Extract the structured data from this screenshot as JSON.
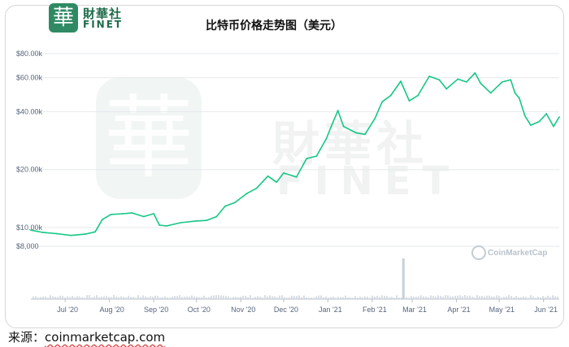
{
  "header": {
    "logo_glyph": "華",
    "logo_cn": "財華社",
    "logo_en": "FINET",
    "title": "比特币价格走势图（美元）"
  },
  "watermark": {
    "seal_glyph": "華",
    "cn": "財華社",
    "en": "FINET",
    "provider": "CoinMarketCap"
  },
  "footer": {
    "source_label": "来源：",
    "source_url": "coinmarketcap.com"
  },
  "colors": {
    "line": "#16c784",
    "grid": "#e6e9ec",
    "axis_text": "#58667e",
    "volume": "#c8d0d8"
  },
  "chart_data": {
    "type": "line",
    "title": "比特币价格走势图（美元）",
    "xlabel": "",
    "ylabel": "",
    "y_scale": "log",
    "ylim": [
      7000,
      90000
    ],
    "y_ticks": [
      {
        "value": 80000,
        "label": "$80.00k"
      },
      {
        "value": 60000,
        "label": "$60.00k"
      },
      {
        "value": 40000,
        "label": "$40.00k"
      },
      {
        "value": 20000,
        "label": "$20.00k"
      },
      {
        "value": 10000,
        "label": "$10.00k"
      },
      {
        "value": 8000,
        "label": "$8,000"
      }
    ],
    "x_ticks": [
      {
        "date": "2020-07-01",
        "label": "Jul '20"
      },
      {
        "date": "2020-08-01",
        "label": "Aug '20"
      },
      {
        "date": "2020-09-01",
        "label": "Sep '20"
      },
      {
        "date": "2020-10-01",
        "label": "Oct '20"
      },
      {
        "date": "2020-11-01",
        "label": "Nov '20"
      },
      {
        "date": "2020-12-01",
        "label": "Dec '20"
      },
      {
        "date": "2021-01-01",
        "label": "Jan '21"
      },
      {
        "date": "2021-02-01",
        "label": "Feb '21"
      },
      {
        "date": "2021-03-01",
        "label": "Mar '21"
      },
      {
        "date": "2021-04-01",
        "label": "Apr '21"
      },
      {
        "date": "2021-05-01",
        "label": "May '21"
      },
      {
        "date": "2021-06-01",
        "label": "Jun '21"
      }
    ],
    "xlim": [
      "2020-06-07",
      "2021-06-12"
    ],
    "grid": true,
    "series": [
      {
        "x": [
          "2020-06-07",
          "2020-06-15",
          "2020-06-25",
          "2020-07-05",
          "2020-07-15",
          "2020-07-22",
          "2020-07-27",
          "2020-08-02",
          "2020-08-10",
          "2020-08-17",
          "2020-08-25",
          "2020-09-01",
          "2020-09-05",
          "2020-09-10",
          "2020-09-20",
          "2020-09-30",
          "2020-10-08",
          "2020-10-15",
          "2020-10-21",
          "2020-10-28",
          "2020-11-05",
          "2020-11-12",
          "2020-11-20",
          "2020-11-26",
          "2020-12-01",
          "2020-12-10",
          "2020-12-17",
          "2020-12-24",
          "2020-12-31",
          "2021-01-03",
          "2021-01-08",
          "2021-01-12",
          "2021-01-21",
          "2021-01-27",
          "2021-02-03",
          "2021-02-08",
          "2021-02-14",
          "2021-02-21",
          "2021-02-27",
          "2021-03-05",
          "2021-03-13",
          "2021-03-20",
          "2021-03-25",
          "2021-04-02",
          "2021-04-08",
          "2021-04-14",
          "2021-04-18",
          "2021-04-25",
          "2021-05-03",
          "2021-05-09",
          "2021-05-12",
          "2021-05-15",
          "2021-05-19",
          "2021-05-23",
          "2021-05-29",
          "2021-06-03",
          "2021-06-08",
          "2021-06-12"
        ],
        "y": [
          9700,
          9450,
          9300,
          9100,
          9250,
          9500,
          11000,
          11700,
          11800,
          11900,
          11400,
          11800,
          10300,
          10200,
          10600,
          10800,
          10900,
          11400,
          12900,
          13500,
          15000,
          16000,
          18500,
          17200,
          19200,
          18300,
          22800,
          23500,
          29000,
          33000,
          40500,
          33500,
          31000,
          30500,
          37000,
          45000,
          48500,
          57500,
          45500,
          48500,
          61000,
          58500,
          52500,
          59000,
          57000,
          63500,
          56000,
          50000,
          57000,
          58500,
          50000,
          47000,
          38000,
          34000,
          35500,
          39000,
          33500,
          37500
        ]
      }
    ]
  }
}
